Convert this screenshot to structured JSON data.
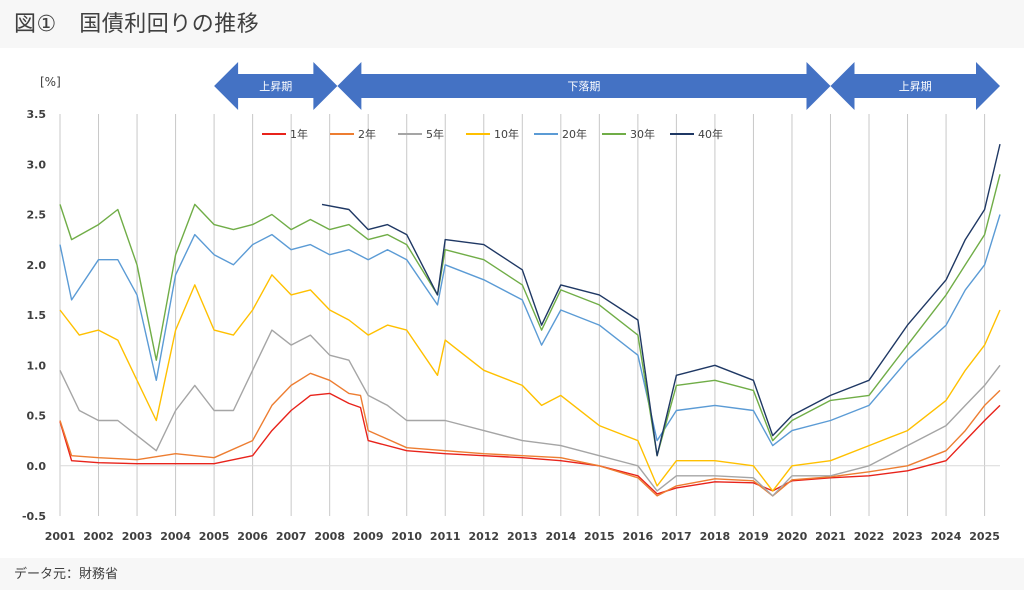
{
  "header": {
    "title": "図①　国債利回りの推移"
  },
  "footer": {
    "source": "データ元：財務省"
  },
  "chart_data": {
    "type": "line",
    "title": "",
    "unit_label": "[%]",
    "xlabel": "",
    "ylabel": "",
    "xlim": [
      2001,
      2025.4
    ],
    "ylim": [
      -0.5,
      3.5
    ],
    "yticks": [
      "3.5",
      "3.0",
      "2.5",
      "2.0",
      "1.5",
      "1.0",
      "0.5",
      "0.0",
      "-0.5"
    ],
    "yticks_values": [
      3.5,
      3.0,
      2.5,
      2.0,
      1.5,
      1.0,
      0.5,
      0.0,
      -0.5
    ],
    "xticks": [
      "2001",
      "2002",
      "2003",
      "2004",
      "2005",
      "2006",
      "2007",
      "2008",
      "2009",
      "2010",
      "2011",
      "2012",
      "2013",
      "2014",
      "2015",
      "2016",
      "2017",
      "2018",
      "2019",
      "2020",
      "2021",
      "2022",
      "2023",
      "2024",
      "2025"
    ],
    "grid": "vertical",
    "legend_position": "top",
    "periods": [
      {
        "label": "上昇期",
        "start": 2005.0,
        "end": 2008.2
      },
      {
        "label": "下落期",
        "start": 2008.2,
        "end": 2021.0
      },
      {
        "label": "上昇期",
        "start": 2021.0,
        "end": 2025.4
      }
    ],
    "colors": {
      "period_arrow": "#4472c4",
      "grid": "#c8c8c8"
    },
    "series": [
      {
        "name": "1年",
        "color": "#e8231b",
        "x": [
          2001,
          2001.3,
          2002,
          2003,
          2004,
          2005,
          2006,
          2006.5,
          2007,
          2007.5,
          2008,
          2008.5,
          2008.8,
          2009,
          2010,
          2011,
          2012,
          2013,
          2014,
          2015,
          2016,
          2016.5,
          2017,
          2018,
          2019,
          2019.5,
          2020,
          2021,
          2022,
          2023,
          2024,
          2024.5,
          2025,
          2025.4
        ],
        "values": [
          0.44,
          0.05,
          0.03,
          0.02,
          0.02,
          0.02,
          0.1,
          0.35,
          0.55,
          0.7,
          0.72,
          0.62,
          0.58,
          0.25,
          0.15,
          0.12,
          0.1,
          0.08,
          0.05,
          0.0,
          -0.1,
          -0.28,
          -0.22,
          -0.16,
          -0.17,
          -0.25,
          -0.15,
          -0.12,
          -0.1,
          -0.05,
          0.05,
          0.25,
          0.45,
          0.6
        ]
      },
      {
        "name": "2年",
        "color": "#ed7d31",
        "x": [
          2001,
          2001.3,
          2002,
          2003,
          2004,
          2005,
          2006,
          2006.5,
          2007,
          2007.5,
          2008,
          2008.5,
          2008.8,
          2009,
          2010,
          2011,
          2012,
          2013,
          2014,
          2015,
          2016,
          2016.5,
          2017,
          2018,
          2019,
          2019.5,
          2020,
          2021,
          2022,
          2023,
          2024,
          2024.5,
          2025,
          2025.4
        ],
        "values": [
          0.45,
          0.1,
          0.08,
          0.06,
          0.12,
          0.08,
          0.25,
          0.6,
          0.8,
          0.92,
          0.85,
          0.72,
          0.7,
          0.35,
          0.18,
          0.15,
          0.12,
          0.1,
          0.08,
          0.0,
          -0.12,
          -0.3,
          -0.2,
          -0.13,
          -0.15,
          -0.3,
          -0.14,
          -0.11,
          -0.06,
          0.0,
          0.15,
          0.35,
          0.6,
          0.75
        ]
      },
      {
        "name": "5年",
        "color": "#a5a5a5",
        "x": [
          2001,
          2001.5,
          2002,
          2002.5,
          2003,
          2003.5,
          2004,
          2004.5,
          2005,
          2005.5,
          2006,
          2006.5,
          2007,
          2007.5,
          2008,
          2008.5,
          2009,
          2009.5,
          2010,
          2011,
          2012,
          2013,
          2014,
          2015,
          2016,
          2016.5,
          2017,
          2018,
          2019,
          2019.5,
          2020,
          2021,
          2022,
          2023,
          2024,
          2024.5,
          2025,
          2025.4
        ],
        "values": [
          0.95,
          0.55,
          0.45,
          0.45,
          0.3,
          0.15,
          0.55,
          0.8,
          0.55,
          0.55,
          0.95,
          1.35,
          1.2,
          1.3,
          1.1,
          1.05,
          0.7,
          0.6,
          0.45,
          0.45,
          0.35,
          0.25,
          0.2,
          0.1,
          0.0,
          -0.25,
          -0.1,
          -0.1,
          -0.12,
          -0.3,
          -0.1,
          -0.1,
          0.0,
          0.2,
          0.4,
          0.6,
          0.8,
          1.0
        ]
      },
      {
        "name": "10年",
        "color": "#ffc000",
        "x": [
          2001,
          2001.5,
          2002,
          2002.5,
          2003,
          2003.5,
          2004,
          2004.5,
          2005,
          2005.5,
          2006,
          2006.5,
          2007,
          2007.5,
          2008,
          2008.5,
          2009,
          2009.5,
          2010,
          2010.8,
          2011,
          2012,
          2013,
          2013.5,
          2014,
          2015,
          2016,
          2016.5,
          2017,
          2018,
          2019,
          2019.5,
          2020,
          2021,
          2022,
          2023,
          2024,
          2024.5,
          2025,
          2025.4
        ],
        "values": [
          1.55,
          1.3,
          1.35,
          1.25,
          0.85,
          0.45,
          1.35,
          1.8,
          1.35,
          1.3,
          1.55,
          1.9,
          1.7,
          1.75,
          1.55,
          1.45,
          1.3,
          1.4,
          1.35,
          0.9,
          1.25,
          0.95,
          0.8,
          0.6,
          0.7,
          0.4,
          0.25,
          -0.2,
          0.05,
          0.05,
          0.0,
          -0.25,
          0.0,
          0.05,
          0.2,
          0.35,
          0.65,
          0.95,
          1.2,
          1.55
        ]
      },
      {
        "name": "20年",
        "color": "#5b9bd5",
        "x": [
          2001,
          2001.3,
          2002,
          2002.5,
          2003,
          2003.5,
          2004,
          2004.5,
          2005,
          2005.5,
          2006,
          2006.5,
          2007,
          2007.5,
          2008,
          2008.5,
          2009,
          2009.5,
          2010,
          2010.8,
          2011,
          2012,
          2013,
          2013.5,
          2014,
          2015,
          2016,
          2016.5,
          2017,
          2018,
          2019,
          2019.5,
          2020,
          2021,
          2022,
          2023,
          2024,
          2024.5,
          2025,
          2025.4
        ],
        "values": [
          2.2,
          1.65,
          2.05,
          2.05,
          1.7,
          0.85,
          1.9,
          2.3,
          2.1,
          2.0,
          2.2,
          2.3,
          2.15,
          2.2,
          2.1,
          2.15,
          2.05,
          2.15,
          2.05,
          1.6,
          2.0,
          1.85,
          1.65,
          1.2,
          1.55,
          1.4,
          1.1,
          0.25,
          0.55,
          0.6,
          0.55,
          0.2,
          0.35,
          0.45,
          0.6,
          1.05,
          1.4,
          1.75,
          2.0,
          2.5
        ]
      },
      {
        "name": "30年",
        "color": "#70ad47",
        "x": [
          2001,
          2001.3,
          2002,
          2002.5,
          2003,
          2003.5,
          2004,
          2004.5,
          2005,
          2005.5,
          2006,
          2006.5,
          2007,
          2007.5,
          2008,
          2008.5,
          2009,
          2009.5,
          2010,
          2010.8,
          2011,
          2012,
          2013,
          2013.5,
          2014,
          2015,
          2016,
          2016.5,
          2017,
          2018,
          2019,
          2019.5,
          2020,
          2021,
          2022,
          2023,
          2024,
          2024.5,
          2025,
          2025.4
        ],
        "values": [
          2.6,
          2.25,
          2.4,
          2.55,
          2.0,
          1.05,
          2.1,
          2.6,
          2.4,
          2.35,
          2.4,
          2.5,
          2.35,
          2.45,
          2.35,
          2.4,
          2.25,
          2.3,
          2.2,
          1.7,
          2.15,
          2.05,
          1.8,
          1.35,
          1.75,
          1.6,
          1.3,
          0.1,
          0.8,
          0.85,
          0.75,
          0.25,
          0.45,
          0.65,
          0.7,
          1.2,
          1.7,
          2.0,
          2.3,
          2.9
        ]
      },
      {
        "name": "40年",
        "color": "#1f3864",
        "x": [
          2007.8,
          2008.5,
          2009,
          2009.5,
          2010,
          2010.8,
          2011,
          2012,
          2013,
          2013.5,
          2014,
          2015,
          2016,
          2016.5,
          2017,
          2018,
          2019,
          2019.5,
          2020,
          2021,
          2022,
          2023,
          2024,
          2024.5,
          2025,
          2025.4
        ],
        "values": [
          2.6,
          2.55,
          2.35,
          2.4,
          2.3,
          1.7,
          2.25,
          2.2,
          1.95,
          1.4,
          1.8,
          1.7,
          1.45,
          0.1,
          0.9,
          1.0,
          0.85,
          0.3,
          0.5,
          0.7,
          0.85,
          1.4,
          1.85,
          2.25,
          2.55,
          3.2
        ]
      }
    ]
  }
}
